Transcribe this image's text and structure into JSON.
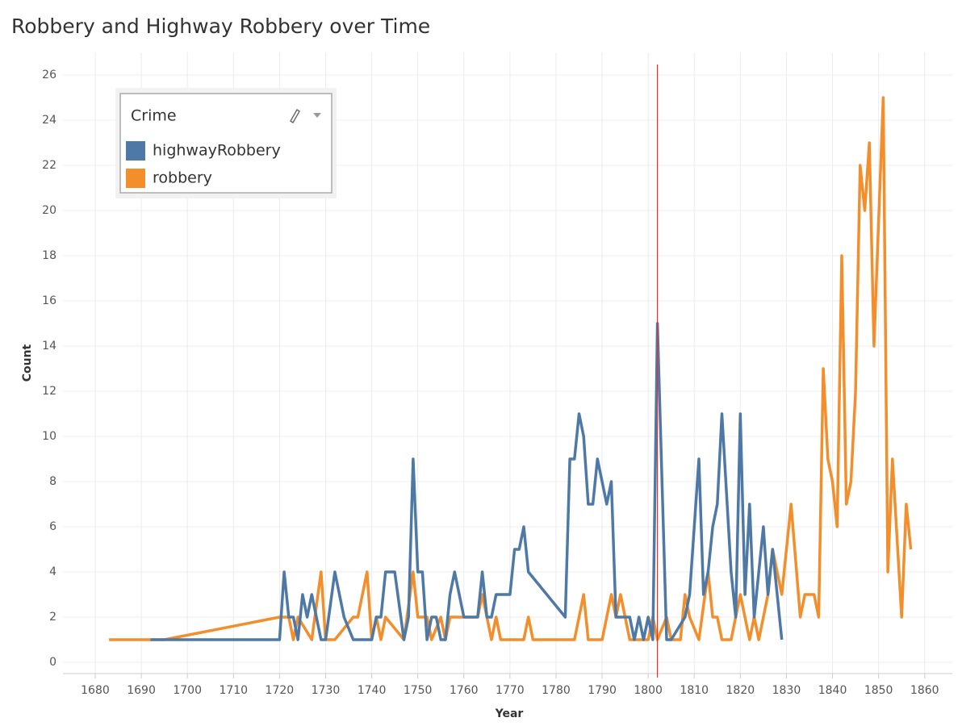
{
  "chart_data": {
    "type": "line",
    "title": "Robbery and Highway Robbery over Time",
    "x_label": "Year",
    "y_label": "Count",
    "legend_title": "Crime",
    "legend_position": "upper left",
    "grid": true,
    "xlim": [
      1673,
      1866
    ],
    "ylim": [
      -0.5,
      27
    ],
    "xticks": [
      1680,
      1690,
      1700,
      1710,
      1720,
      1730,
      1740,
      1750,
      1760,
      1770,
      1780,
      1790,
      1800,
      1810,
      1820,
      1830,
      1840,
      1850,
      1860
    ],
    "yticks": [
      0,
      2,
      4,
      6,
      8,
      10,
      12,
      14,
      16,
      18,
      20,
      22,
      24,
      26
    ],
    "reference_line": {
      "x": 1802,
      "color": "#e8302a"
    },
    "series": [
      {
        "name": "highwayRobbery",
        "color": "#4e79a7",
        "x": [
          1692,
          1720,
          1721,
          1722,
          1723,
          1724,
          1725,
          1726,
          1727,
          1729,
          1730,
          1732,
          1734,
          1736,
          1740,
          1741,
          1742,
          1743,
          1745,
          1747,
          1748,
          1749,
          1750,
          1751,
          1752,
          1753,
          1754,
          1755,
          1756,
          1757,
          1758,
          1760,
          1763,
          1764,
          1765,
          1766,
          1767,
          1770,
          1771,
          1772,
          1773,
          1774,
          1782,
          1783,
          1784,
          1785,
          1786,
          1787,
          1788,
          1789,
          1791,
          1792,
          1793,
          1796,
          1797,
          1798,
          1799,
          1800,
          1801,
          1802,
          1804,
          1805,
          1808,
          1809,
          1811,
          1812,
          1813,
          1814,
          1815,
          1816,
          1818,
          1819,
          1820,
          1821,
          1822,
          1823,
          1825,
          1826,
          1827,
          1828,
          1829
        ],
        "values": [
          1,
          1,
          4,
          2,
          2,
          1,
          3,
          2,
          3,
          1,
          1,
          4,
          2,
          1,
          1,
          2,
          2,
          4,
          4,
          1,
          2,
          9,
          4,
          4,
          1,
          2,
          2,
          1,
          1,
          3,
          4,
          2,
          2,
          4,
          2,
          2,
          3,
          3,
          5,
          5,
          6,
          4,
          2,
          9,
          9,
          11,
          10,
          7,
          7,
          9,
          7,
          8,
          2,
          2,
          1,
          2,
          1,
          2,
          1,
          15,
          1,
          1,
          2,
          3,
          9,
          3,
          4,
          6,
          7,
          11,
          4,
          2,
          11,
          3,
          7,
          2,
          6,
          3,
          5,
          3,
          1
        ]
      },
      {
        "name": "robbery",
        "color": "#f28e2b",
        "x": [
          1683,
          1695,
          1720,
          1722,
          1723,
          1724,
          1727,
          1729,
          1730,
          1732,
          1736,
          1737,
          1739,
          1740,
          1741,
          1742,
          1743,
          1747,
          1749,
          1750,
          1752,
          1753,
          1755,
          1756,
          1757,
          1763,
          1764,
          1765,
          1766,
          1767,
          1768,
          1773,
          1774,
          1775,
          1784,
          1786,
          1787,
          1790,
          1792,
          1793,
          1794,
          1795,
          1796,
          1798,
          1800,
          1801,
          1802,
          1804,
          1805,
          1807,
          1808,
          1809,
          1811,
          1813,
          1814,
          1815,
          1816,
          1818,
          1820,
          1822,
          1823,
          1824,
          1826,
          1827,
          1829,
          1831,
          1833,
          1834,
          1836,
          1837,
          1838,
          1839,
          1840,
          1841,
          1842,
          1843,
          1844,
          1845,
          1846,
          1847,
          1848,
          1849,
          1851,
          1852,
          1853,
          1855,
          1856,
          1857
        ],
        "values": [
          1,
          1,
          2,
          2,
          1,
          2,
          1,
          4,
          1,
          1,
          2,
          2,
          4,
          1,
          2,
          1,
          2,
          1,
          4,
          2,
          2,
          1,
          2,
          1,
          2,
          2,
          3,
          2,
          1,
          2,
          1,
          1,
          2,
          1,
          1,
          3,
          1,
          1,
          3,
          2,
          3,
          2,
          1,
          1,
          1,
          2,
          1,
          2,
          1,
          1,
          3,
          2,
          1,
          4,
          2,
          2,
          1,
          1,
          3,
          1,
          2,
          1,
          3,
          5,
          3,
          7,
          2,
          3,
          3,
          2,
          13,
          9,
          8,
          6,
          18,
          7,
          8,
          12,
          22,
          20,
          23,
          14,
          25,
          4,
          9,
          2,
          7,
          5
        ]
      }
    ]
  }
}
